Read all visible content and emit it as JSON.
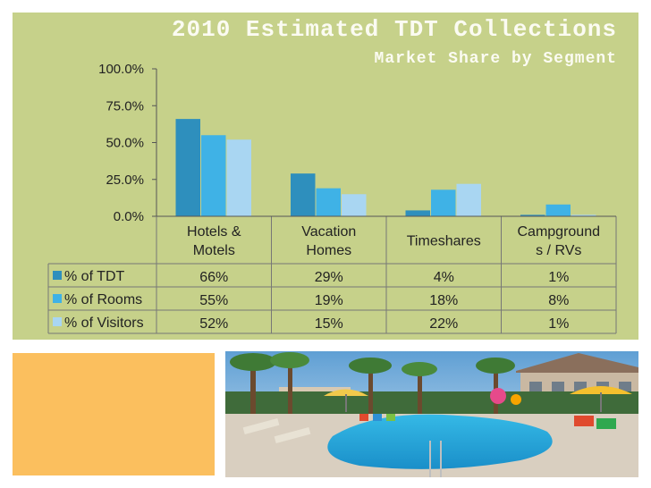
{
  "slide": {
    "title": "2010 Estimated TDT Collections",
    "subtitle": "Market Share by Segment"
  },
  "colors": {
    "panel_bg": "#c6d18a",
    "series": [
      "#2e8fbd",
      "#3fb2e6",
      "#a9d6f2"
    ],
    "orange_block": "#fbbf5e"
  },
  "photo": {
    "icon": "resort-pool-photo"
  },
  "chart_data": {
    "type": "bar",
    "title": "2010 Estimated TDT Collections",
    "subtitle": "Market Share by Segment",
    "categories": [
      [
        "Hotels &",
        "Motels"
      ],
      [
        "Vacation",
        "Homes"
      ],
      [
        "Timeshares"
      ],
      [
        "Campground",
        "s / RVs"
      ]
    ],
    "series": [
      {
        "name": "% of TDT",
        "values": [
          66,
          29,
          4,
          1
        ],
        "labels": [
          "66%",
          "29%",
          "4%",
          "1%"
        ]
      },
      {
        "name": "% of Rooms",
        "values": [
          55,
          19,
          18,
          8
        ],
        "labels": [
          "55%",
          "19%",
          "18%",
          "8%"
        ]
      },
      {
        "name": "% of Visitors",
        "values": [
          52,
          15,
          22,
          1
        ],
        "labels": [
          "52%",
          "15%",
          "22%",
          "1%"
        ]
      }
    ],
    "yticks": [
      "0.0%",
      "25.0%",
      "50.0%",
      "75.0%",
      "100.0%"
    ],
    "ylim": [
      0,
      100
    ],
    "grid": false,
    "legend": "data-table-left"
  }
}
